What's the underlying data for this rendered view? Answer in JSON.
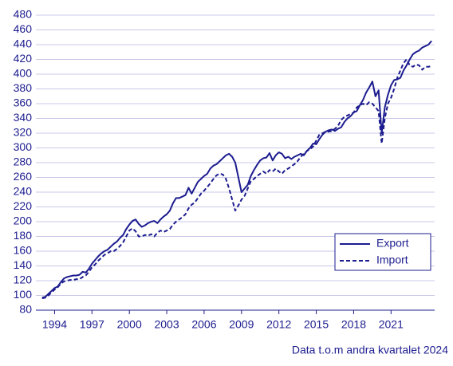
{
  "chart_data": {
    "type": "line",
    "x": [
      1993,
      1993.25,
      1993.5,
      1993.75,
      1994,
      1994.25,
      1994.5,
      1994.75,
      1995,
      1995.25,
      1995.5,
      1995.75,
      1996,
      1996.25,
      1996.5,
      1996.75,
      1997,
      1997.25,
      1997.5,
      1997.75,
      1998,
      1998.25,
      1998.5,
      1998.75,
      1999,
      1999.25,
      1999.5,
      1999.75,
      2000,
      2000.25,
      2000.5,
      2000.75,
      2001,
      2001.25,
      2001.5,
      2001.75,
      2002,
      2002.25,
      2002.5,
      2002.75,
      2003,
      2003.25,
      2003.5,
      2003.75,
      2004,
      2004.25,
      2004.5,
      2004.75,
      2005,
      2005.25,
      2005.5,
      2005.75,
      2006,
      2006.25,
      2006.5,
      2006.75,
      2007,
      2007.25,
      2007.5,
      2007.75,
      2008,
      2008.25,
      2008.5,
      2008.75,
      2009,
      2009.25,
      2009.5,
      2009.75,
      2010,
      2010.25,
      2010.5,
      2010.75,
      2011,
      2011.25,
      2011.5,
      2011.75,
      2012,
      2012.25,
      2012.5,
      2012.75,
      2013,
      2013.25,
      2013.5,
      2013.75,
      2014,
      2014.25,
      2014.5,
      2014.75,
      2015,
      2015.25,
      2015.5,
      2015.75,
      2016,
      2016.25,
      2016.5,
      2016.75,
      2017,
      2017.25,
      2017.5,
      2017.75,
      2018,
      2018.25,
      2018.5,
      2018.75,
      2019,
      2019.25,
      2019.5,
      2019.75,
      2020,
      2020.25,
      2020.5,
      2020.75,
      2021,
      2021.25,
      2021.5,
      2021.75,
      2022,
      2022.25,
      2022.5,
      2022.75,
      2023,
      2023.25,
      2023.5,
      2023.75,
      2024,
      2024.25
    ],
    "series": [
      {
        "name": "Export",
        "color": "#1c1c8f",
        "dash": false,
        "values": [
          97,
          98,
          102,
          106,
          110,
          112,
          118,
          123,
          125,
          126,
          127,
          127,
          128,
          132,
          131,
          136,
          143,
          148,
          153,
          157,
          160,
          162,
          166,
          170,
          173,
          178,
          182,
          190,
          196,
          201,
          203,
          197,
          193,
          195,
          198,
          200,
          201,
          198,
          203,
          207,
          210,
          215,
          225,
          232,
          232,
          234,
          236,
          246,
          238,
          246,
          254,
          258,
          262,
          265,
          272,
          276,
          278,
          282,
          286,
          290,
          292,
          288,
          280,
          260,
          240,
          245,
          250,
          262,
          270,
          277,
          283,
          286,
          287,
          293,
          283,
          290,
          294,
          292,
          286,
          288,
          285,
          288,
          290,
          292,
          290,
          296,
          300,
          306,
          305,
          312,
          318,
          322,
          324,
          325,
          323,
          326,
          328,
          335,
          340,
          343,
          348,
          350,
          358,
          365,
          375,
          382,
          390,
          370,
          378,
          320,
          355,
          372,
          385,
          392,
          393,
          395,
          405,
          412,
          420,
          427,
          430,
          432,
          436,
          438,
          440,
          445
        ]
      },
      {
        "name": "Import",
        "color": "#1c1c8f",
        "dash": true,
        "values": [
          96,
          97,
          100,
          104,
          108,
          111,
          116,
          119,
          120,
          121,
          121,
          122,
          122,
          125,
          127,
          132,
          138,
          142,
          147,
          151,
          155,
          157,
          160,
          160,
          163,
          167,
          172,
          180,
          188,
          191,
          187,
          180,
          180,
          182,
          181,
          183,
          180,
          185,
          188,
          186,
          188,
          190,
          196,
          200,
          203,
          206,
          210,
          218,
          223,
          226,
          232,
          238,
          242,
          247,
          252,
          258,
          263,
          265,
          264,
          258,
          245,
          230,
          215,
          222,
          230,
          235,
          245,
          255,
          258,
          262,
          265,
          268,
          265,
          270,
          268,
          272,
          268,
          265,
          270,
          272,
          275,
          278,
          282,
          288,
          292,
          296,
          298,
          302,
          310,
          318,
          320,
          322,
          322,
          323,
          326,
          330,
          338,
          342,
          344,
          346,
          348,
          355,
          358,
          360,
          358,
          362,
          360,
          355,
          350,
          306,
          340,
          360,
          368,
          380,
          395,
          405,
          415,
          420,
          412,
          410,
          413,
          412,
          406,
          410,
          410,
          411
        ]
      }
    ],
    "xlim": [
      1992.5,
      2024.5
    ],
    "xticks": [
      1994,
      1997,
      2000,
      2003,
      2006,
      2009,
      2012,
      2015,
      2018,
      2021
    ],
    "ylim": [
      80,
      480
    ],
    "yticks": [
      80,
      100,
      120,
      140,
      160,
      180,
      200,
      220,
      240,
      260,
      280,
      300,
      320,
      340,
      360,
      380,
      400,
      420,
      440,
      460,
      480
    ],
    "grid": true,
    "legend": "lower right",
    "note": "Data t.o.m andra kvartalet 2024"
  }
}
